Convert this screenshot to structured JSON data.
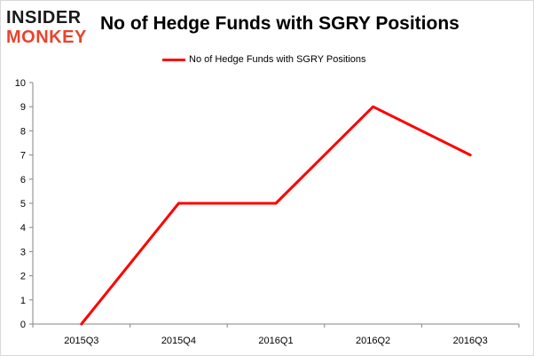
{
  "logo": {
    "line1": "INSIDER",
    "line2": "MONKEY"
  },
  "title": "No of Hedge Funds with SGRY Positions",
  "legend": {
    "label": "No of Hedge Funds with SGRY Positions"
  },
  "colors": {
    "series": "#ff0000",
    "axis": "#868686",
    "grid": "#d9d9d9"
  },
  "chart_data": {
    "type": "line",
    "title": "No of Hedge Funds with SGRY Positions",
    "xlabel": "",
    "ylabel": "",
    "categories": [
      "2015Q3",
      "2015Q4",
      "2016Q1",
      "2016Q2",
      "2016Q3"
    ],
    "series": [
      {
        "name": "No of Hedge Funds with SGRY Positions",
        "values": [
          0,
          5,
          5,
          9,
          7
        ]
      }
    ],
    "ylim": [
      0,
      10
    ],
    "yticks": [
      0,
      1,
      2,
      3,
      4,
      5,
      6,
      7,
      8,
      9,
      10
    ],
    "grid": false,
    "legend_position": "top"
  }
}
